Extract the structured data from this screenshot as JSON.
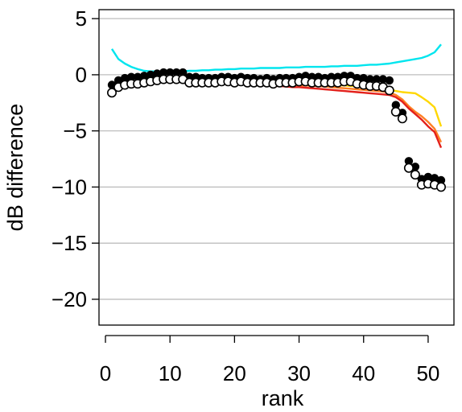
{
  "chart_data": {
    "type": "line",
    "title": "",
    "xlabel": "rank",
    "ylabel": "dB difference",
    "xlim": [
      -1,
      54
    ],
    "ylim": [
      -22.3,
      5.8
    ],
    "x_ticks": [
      0,
      10,
      20,
      30,
      40,
      50
    ],
    "x_tick_labels": [
      "0",
      "10",
      "20",
      "30",
      "40",
      "50"
    ],
    "y_ticks": [
      5,
      0,
      -5,
      -10,
      -15,
      -20
    ],
    "y_tick_labels": [
      "5",
      "0",
      "−5",
      "−10",
      "−15",
      "−20"
    ],
    "grid": "horizontal",
    "legend": "none",
    "x": [
      1,
      2,
      3,
      4,
      5,
      6,
      7,
      8,
      9,
      10,
      11,
      12,
      13,
      14,
      15,
      16,
      17,
      18,
      19,
      20,
      21,
      22,
      23,
      24,
      25,
      26,
      27,
      28,
      29,
      30,
      31,
      32,
      33,
      34,
      35,
      36,
      37,
      38,
      39,
      40,
      41,
      42,
      43,
      44,
      45,
      46,
      47,
      48,
      49,
      50,
      51,
      52
    ],
    "series": [
      {
        "color": "#00E5EE",
        "style": "line",
        "values": [
          2.3,
          1.4,
          1.0,
          0.7,
          0.5,
          0.35,
          0.3,
          0.3,
          0.3,
          0.3,
          0.3,
          0.3,
          0.35,
          0.35,
          0.4,
          0.4,
          0.45,
          0.45,
          0.5,
          0.5,
          0.55,
          0.55,
          0.55,
          0.6,
          0.6,
          0.6,
          0.6,
          0.65,
          0.65,
          0.65,
          0.7,
          0.7,
          0.7,
          0.7,
          0.75,
          0.75,
          0.8,
          0.8,
          0.8,
          0.85,
          0.9,
          0.9,
          0.95,
          1.0,
          1.1,
          1.2,
          1.3,
          1.4,
          1.5,
          1.7,
          2.0,
          2.7
        ]
      },
      {
        "color": "#FFD700",
        "style": "line",
        "values": [
          -1.5,
          -1.0,
          -0.8,
          -0.7,
          -0.6,
          -0.5,
          -0.45,
          -0.4,
          -0.35,
          -0.35,
          -0.4,
          -0.4,
          -0.45,
          -0.5,
          -0.55,
          -0.55,
          -0.6,
          -0.6,
          -0.6,
          -0.6,
          -0.65,
          -0.65,
          -0.7,
          -0.7,
          -0.75,
          -0.75,
          -0.8,
          -0.8,
          -0.8,
          -0.85,
          -0.85,
          -0.85,
          -0.9,
          -0.9,
          -0.9,
          -0.95,
          -0.95,
          -1.0,
          -1.0,
          -1.05,
          -1.1,
          -1.15,
          -1.2,
          -1.3,
          -1.45,
          -1.55,
          -1.6,
          -1.65,
          -2.0,
          -2.4,
          -2.9,
          -4.6
        ]
      },
      {
        "color": "#FF7F24",
        "style": "line",
        "values": [
          -1.6,
          -1.1,
          -0.9,
          -0.8,
          -0.7,
          -0.6,
          -0.5,
          -0.45,
          -0.4,
          -0.4,
          -0.45,
          -0.5,
          -0.5,
          -0.55,
          -0.6,
          -0.6,
          -0.65,
          -0.65,
          -0.7,
          -0.7,
          -0.7,
          -0.75,
          -0.75,
          -0.8,
          -0.8,
          -0.85,
          -0.85,
          -0.9,
          -0.9,
          -0.95,
          -0.95,
          -1.0,
          -1.0,
          -1.05,
          -1.1,
          -1.15,
          -1.2,
          -1.25,
          -1.3,
          -1.35,
          -1.4,
          -1.45,
          -1.5,
          -1.6,
          -1.8,
          -2.2,
          -2.8,
          -3.3,
          -3.7,
          -4.2,
          -4.8,
          -6.0
        ]
      },
      {
        "color": "#E3201B",
        "style": "line",
        "values": [
          -1.7,
          -1.2,
          -1.0,
          -0.9,
          -0.8,
          -0.7,
          -0.6,
          -0.55,
          -0.5,
          -0.5,
          -0.5,
          -0.55,
          -0.6,
          -0.6,
          -0.65,
          -0.65,
          -0.7,
          -0.7,
          -0.75,
          -0.75,
          -0.8,
          -0.8,
          -0.85,
          -0.9,
          -0.95,
          -1.0,
          -1.0,
          -1.05,
          -1.1,
          -1.1,
          -1.15,
          -1.2,
          -1.25,
          -1.3,
          -1.35,
          -1.4,
          -1.45,
          -1.5,
          -1.55,
          -1.6,
          -1.65,
          -1.7,
          -1.75,
          -1.8,
          -2.0,
          -2.4,
          -3.0,
          -3.5,
          -4.0,
          -4.6,
          -5.1,
          -6.5
        ]
      },
      {
        "color": "#000000",
        "style": "points-filled",
        "values": [
          -0.9,
          -0.5,
          -0.3,
          -0.2,
          -0.2,
          -0.1,
          0.0,
          0.1,
          0.2,
          0.2,
          0.2,
          0.2,
          -0.2,
          -0.2,
          -0.3,
          -0.3,
          -0.3,
          -0.2,
          -0.2,
          -0.3,
          -0.2,
          -0.3,
          -0.3,
          -0.4,
          -0.3,
          -0.4,
          -0.3,
          -0.3,
          -0.3,
          -0.2,
          -0.1,
          -0.2,
          -0.2,
          -0.3,
          -0.2,
          -0.2,
          -0.1,
          -0.1,
          -0.3,
          -0.3,
          -0.4,
          -0.4,
          -0.4,
          -0.5,
          -2.7,
          -3.4,
          -7.7,
          -8.2,
          -9.3,
          -9.1,
          -9.2,
          -9.4
        ]
      },
      {
        "color": "#000000",
        "style": "points-open",
        "values": [
          -1.6,
          -1.1,
          -0.9,
          -0.8,
          -0.8,
          -0.7,
          -0.6,
          -0.5,
          -0.4,
          -0.4,
          -0.4,
          -0.4,
          -0.7,
          -0.7,
          -0.7,
          -0.7,
          -0.7,
          -0.6,
          -0.6,
          -0.7,
          -0.6,
          -0.7,
          -0.7,
          -0.7,
          -0.7,
          -0.8,
          -0.7,
          -0.7,
          -0.7,
          -0.6,
          -0.6,
          -0.7,
          -0.7,
          -0.7,
          -0.7,
          -0.7,
          -0.6,
          -0.6,
          -0.8,
          -0.9,
          -1.0,
          -1.0,
          -1.1,
          -1.4,
          -3.3,
          -3.9,
          -8.3,
          -8.9,
          -9.8,
          -9.7,
          -9.8,
          -10.0
        ]
      }
    ]
  }
}
